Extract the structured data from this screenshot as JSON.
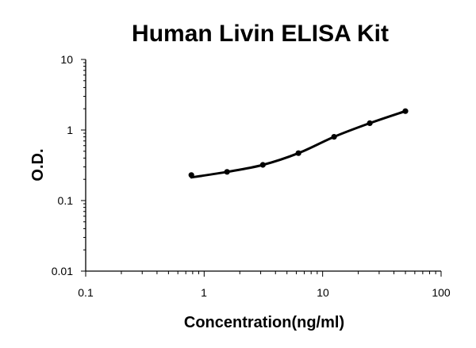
{
  "chart_data": {
    "type": "scatter",
    "title": "Human Livin ELISA Kit",
    "xlabel": "Concentration(ng/ml)",
    "ylabel": "O.D.",
    "x_scale": "log",
    "y_scale": "log",
    "xlim": [
      0.1,
      100
    ],
    "ylim": [
      0.01,
      10
    ],
    "x_ticks": [
      "0.1",
      "1",
      "10",
      "100"
    ],
    "y_ticks": [
      "0.01",
      "0.1",
      "1",
      "10"
    ],
    "grid": false,
    "legend": "none",
    "series": [
      {
        "x": [
          0.78,
          1.56,
          3.13,
          6.25,
          12.5,
          25,
          50
        ],
        "y": [
          0.23,
          0.255,
          0.32,
          0.47,
          0.8,
          1.25,
          1.85
        ],
        "color": "#000000",
        "fit_line": true
      }
    ]
  }
}
